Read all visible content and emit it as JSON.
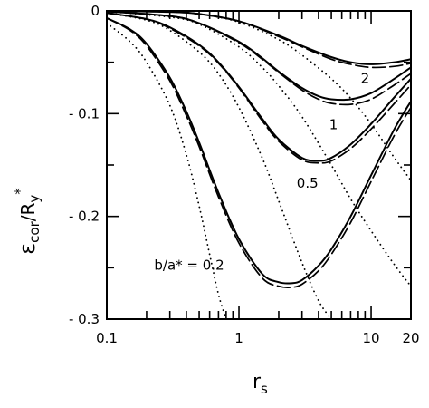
{
  "chart_data": {
    "type": "line",
    "x_scale": "log",
    "xlim": [
      0.1,
      20
    ],
    "ylim": [
      -0.3,
      0
    ],
    "x_ticks": [
      {
        "value": 0.1,
        "label": "0.1"
      },
      {
        "value": 1,
        "label": "1"
      },
      {
        "value": 10,
        "label": "10"
      },
      {
        "value": 20,
        "label": "20"
      }
    ],
    "y_ticks": [
      {
        "value": 0,
        "label": "0"
      },
      {
        "value": -0.1,
        "label": "- 0.1"
      },
      {
        "value": -0.2,
        "label": "- 0.2"
      },
      {
        "value": -0.3,
        "label": "- 0.3"
      }
    ],
    "xlabel": {
      "main": "r",
      "sub": "s"
    },
    "ylabel": {
      "eps": "ε",
      "sub": "cor",
      "slash": "/R",
      "sub2": "y",
      "sup": "*"
    },
    "grid": false,
    "curve_labels": [
      {
        "text": "b/a* = 0.2",
        "at": [
          0.42,
          -0.252
        ]
      },
      {
        "text": "0.5",
        "at": [
          3.3,
          -0.172
        ]
      },
      {
        "text": "1",
        "at": [
          5.2,
          -0.115
        ]
      },
      {
        "text": "2",
        "at": [
          9.0,
          -0.07
        ]
      }
    ],
    "series": [
      {
        "b_over_a": "0.2",
        "style": "solid",
        "x": [
          0.1,
          0.15,
          0.2,
          0.3,
          0.4,
          0.5,
          0.7,
          1.0,
          1.5,
          2.0,
          2.5,
          3.0,
          4.0,
          5.0,
          7.0,
          10.0,
          15.0,
          20.0
        ],
        "y": [
          -0.007,
          -0.018,
          -0.032,
          -0.065,
          -0.098,
          -0.128,
          -0.177,
          -0.222,
          -0.256,
          -0.264,
          -0.265,
          -0.262,
          -0.248,
          -0.232,
          -0.2,
          -0.16,
          -0.115,
          -0.088
        ]
      },
      {
        "b_over_a": "0.2",
        "style": "dashed",
        "x": [
          0.1,
          0.15,
          0.2,
          0.3,
          0.4,
          0.5,
          0.7,
          1.0,
          1.5,
          2.0,
          2.5,
          3.0,
          4.0,
          5.0,
          7.0,
          10.0,
          15.0,
          20.0
        ],
        "y": [
          -0.007,
          -0.019,
          -0.034,
          -0.068,
          -0.102,
          -0.132,
          -0.181,
          -0.226,
          -0.26,
          -0.268,
          -0.269,
          -0.266,
          -0.253,
          -0.237,
          -0.206,
          -0.166,
          -0.121,
          -0.094
        ]
      },
      {
        "b_over_a": "0.2",
        "style": "dotted",
        "x": [
          0.1,
          0.15,
          0.2,
          0.3,
          0.4,
          0.5,
          0.6,
          0.7,
          0.8
        ],
        "y": [
          -0.012,
          -0.03,
          -0.05,
          -0.092,
          -0.14,
          -0.19,
          -0.237,
          -0.276,
          -0.3
        ]
      },
      {
        "b_over_a": "0.5",
        "style": "solid",
        "x": [
          0.1,
          0.2,
          0.3,
          0.5,
          0.7,
          1.0,
          1.5,
          2.0,
          3.0,
          4.0,
          5.0,
          7.0,
          10.0,
          15.0,
          20.0
        ],
        "y": [
          -0.002,
          -0.008,
          -0.016,
          -0.033,
          -0.05,
          -0.074,
          -0.105,
          -0.125,
          -0.143,
          -0.146,
          -0.143,
          -0.13,
          -0.11,
          -0.084,
          -0.066
        ]
      },
      {
        "b_over_a": "0.5",
        "style": "dashed",
        "x": [
          0.1,
          0.2,
          0.3,
          0.5,
          0.7,
          1.0,
          1.5,
          2.0,
          3.0,
          4.0,
          5.0,
          7.0,
          10.0,
          15.0,
          20.0
        ],
        "y": [
          -0.002,
          -0.008,
          -0.017,
          -0.034,
          -0.051,
          -0.075,
          -0.107,
          -0.127,
          -0.145,
          -0.148,
          -0.146,
          -0.134,
          -0.115,
          -0.09,
          -0.072
        ]
      },
      {
        "b_over_a": "0.5",
        "style": "dotted",
        "x": [
          0.1,
          0.2,
          0.3,
          0.5,
          0.7,
          1.0,
          1.5,
          2.0,
          3.0,
          4.0,
          5.0
        ],
        "y": [
          -0.002,
          -0.009,
          -0.019,
          -0.04,
          -0.061,
          -0.094,
          -0.143,
          -0.185,
          -0.245,
          -0.282,
          -0.3
        ]
      },
      {
        "b_over_a": "1",
        "style": "solid",
        "x": [
          0.1,
          0.3,
          0.5,
          1.0,
          1.5,
          2.0,
          3.0,
          4.0,
          5.0,
          7.0,
          10.0,
          15.0,
          20.0
        ],
        "y": [
          -0.0005,
          -0.005,
          -0.012,
          -0.03,
          -0.046,
          -0.059,
          -0.075,
          -0.083,
          -0.086,
          -0.086,
          -0.08,
          -0.066,
          -0.055
        ]
      },
      {
        "b_over_a": "1",
        "style": "dashed",
        "x": [
          0.1,
          0.3,
          0.5,
          1.0,
          1.5,
          2.0,
          3.0,
          4.0,
          5.0,
          7.0,
          10.0,
          15.0,
          20.0
        ],
        "y": [
          -0.0005,
          -0.005,
          -0.012,
          -0.031,
          -0.047,
          -0.06,
          -0.077,
          -0.086,
          -0.09,
          -0.091,
          -0.086,
          -0.072,
          -0.061
        ]
      },
      {
        "b_over_a": "1",
        "style": "dotted",
        "x": [
          0.1,
          0.3,
          0.5,
          1.0,
          1.5,
          2.0,
          3.0,
          5.0,
          7.0,
          10.0,
          15.0,
          20.0
        ],
        "y": [
          -0.0005,
          -0.006,
          -0.013,
          -0.035,
          -0.055,
          -0.073,
          -0.103,
          -0.15,
          -0.183,
          -0.214,
          -0.247,
          -0.268
        ]
      },
      {
        "b_over_a": "2",
        "style": "solid",
        "x": [
          0.1,
          0.3,
          0.5,
          1.0,
          2.0,
          3.0,
          5.0,
          7.0,
          10.0,
          15.0,
          20.0
        ],
        "y": [
          0.0,
          -0.001,
          -0.003,
          -0.01,
          -0.024,
          -0.034,
          -0.045,
          -0.05,
          -0.052,
          -0.05,
          -0.047
        ]
      },
      {
        "b_over_a": "2",
        "style": "dashed",
        "x": [
          0.1,
          0.3,
          0.5,
          1.0,
          2.0,
          3.0,
          5.0,
          7.0,
          10.0,
          15.0,
          20.0
        ],
        "y": [
          0.0,
          -0.001,
          -0.003,
          -0.01,
          -0.025,
          -0.035,
          -0.047,
          -0.052,
          -0.055,
          -0.054,
          -0.051
        ]
      },
      {
        "b_over_a": "2",
        "style": "dotted",
        "x": [
          0.1,
          0.3,
          0.5,
          1.0,
          2.0,
          3.0,
          5.0,
          7.0,
          10.0,
          15.0,
          20.0
        ],
        "y": [
          0.0,
          -0.001,
          -0.003,
          -0.011,
          -0.028,
          -0.043,
          -0.066,
          -0.085,
          -0.11,
          -0.143,
          -0.165
        ]
      }
    ]
  }
}
